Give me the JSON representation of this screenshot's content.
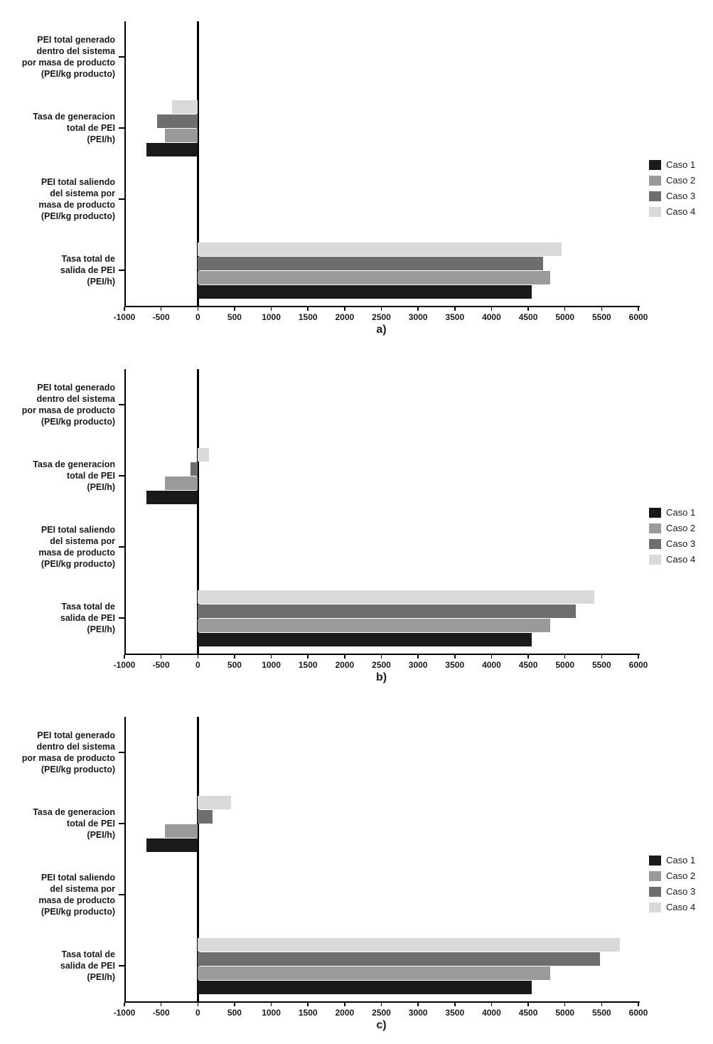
{
  "figure": {
    "background": "#ffffff",
    "panel_labels": [
      "a)",
      "b)",
      "c)"
    ]
  },
  "chart_data": [
    {
      "type": "bar",
      "orientation": "horizontal",
      "panel_label": "a)",
      "title": "",
      "xlabel": "",
      "ylabel": "",
      "xlim": [
        -1000,
        6000
      ],
      "xticks": [
        -1000,
        -500,
        0,
        500,
        1000,
        1500,
        2000,
        2500,
        3000,
        3500,
        4000,
        4500,
        5000,
        5500,
        6000
      ],
      "legend_position": "right",
      "grid": false,
      "categories": [
        [
          "PEI total generado",
          "dentro del sistema",
          "por masa de producto",
          "(PEI/kg producto)"
        ],
        [
          "Tasa de generacion",
          "total de PEI",
          "(PEI/h)"
        ],
        [
          "PEI total saliendo",
          "del sistema por",
          "masa de producto",
          "(PEI/kg producto)"
        ],
        [
          "Tasa total de",
          "salida de PEI",
          "(PEI/h)"
        ]
      ],
      "series": [
        {
          "name": "Caso 1",
          "color": "#1a1a1a",
          "values": [
            0,
            -700,
            0,
            4550
          ]
        },
        {
          "name": "Caso 2",
          "color": "#9a9a9a",
          "values": [
            0,
            -450,
            0,
            4800
          ]
        },
        {
          "name": "Caso 3",
          "color": "#6e6e6e",
          "values": [
            0,
            -550,
            0,
            4700
          ]
        },
        {
          "name": "Caso 4",
          "color": "#d9d9d9",
          "values": [
            0,
            -350,
            0,
            4950
          ]
        }
      ]
    },
    {
      "type": "bar",
      "orientation": "horizontal",
      "panel_label": "b)",
      "title": "",
      "xlabel": "",
      "ylabel": "",
      "xlim": [
        -1000,
        6000
      ],
      "xticks": [
        -1000,
        -500,
        0,
        500,
        1000,
        1500,
        2000,
        2500,
        3000,
        3500,
        4000,
        4500,
        5000,
        5500,
        6000
      ],
      "legend_position": "right",
      "grid": false,
      "categories": [
        [
          "PEI total generado",
          "dentro del sistema",
          "por masa de producto",
          "(PEI/kg producto)"
        ],
        [
          "Tasa de generacion",
          "total de PEI",
          "(PEI/h)"
        ],
        [
          "PEI total saliendo",
          "del sistema por",
          "masa de producto",
          "(PEI/kg producto)"
        ],
        [
          "Tasa total de",
          "salida de PEI",
          "(PEI/h)"
        ]
      ],
      "series": [
        {
          "name": "Caso 1",
          "color": "#1a1a1a",
          "values": [
            0,
            -700,
            0,
            4550
          ]
        },
        {
          "name": "Caso 2",
          "color": "#9a9a9a",
          "values": [
            0,
            -450,
            0,
            4800
          ]
        },
        {
          "name": "Caso 3",
          "color": "#6e6e6e",
          "values": [
            0,
            -100,
            0,
            5150
          ]
        },
        {
          "name": "Caso 4",
          "color": "#d9d9d9",
          "values": [
            0,
            150,
            0,
            5400
          ]
        }
      ]
    },
    {
      "type": "bar",
      "orientation": "horizontal",
      "panel_label": "c)",
      "title": "",
      "xlabel": "",
      "ylabel": "",
      "xlim": [
        -1000,
        6000
      ],
      "xticks": [
        -1000,
        -500,
        0,
        500,
        1000,
        1500,
        2000,
        2500,
        3000,
        3500,
        4000,
        4500,
        5000,
        5500,
        6000
      ],
      "legend_position": "right",
      "grid": false,
      "categories": [
        [
          "PEI total generado",
          "dentro del sistema",
          "por masa de producto",
          "(PEI/kg producto)"
        ],
        [
          "Tasa de generacion",
          "total de PEI",
          "(PEI/h)"
        ],
        [
          "PEI total saliendo",
          "del sistema por",
          "masa de producto",
          "(PEI/kg producto)"
        ],
        [
          "Tasa total de",
          "salida de PEI",
          "(PEI/h)"
        ]
      ],
      "series": [
        {
          "name": "Caso 1",
          "color": "#1a1a1a",
          "values": [
            0,
            -700,
            0,
            4550
          ]
        },
        {
          "name": "Caso 2",
          "color": "#9a9a9a",
          "values": [
            0,
            -450,
            0,
            4800
          ]
        },
        {
          "name": "Caso 3",
          "color": "#6e6e6e",
          "values": [
            0,
            200,
            0,
            5480
          ]
        },
        {
          "name": "Caso 4",
          "color": "#d9d9d9",
          "values": [
            0,
            450,
            0,
            5750
          ]
        }
      ]
    }
  ]
}
